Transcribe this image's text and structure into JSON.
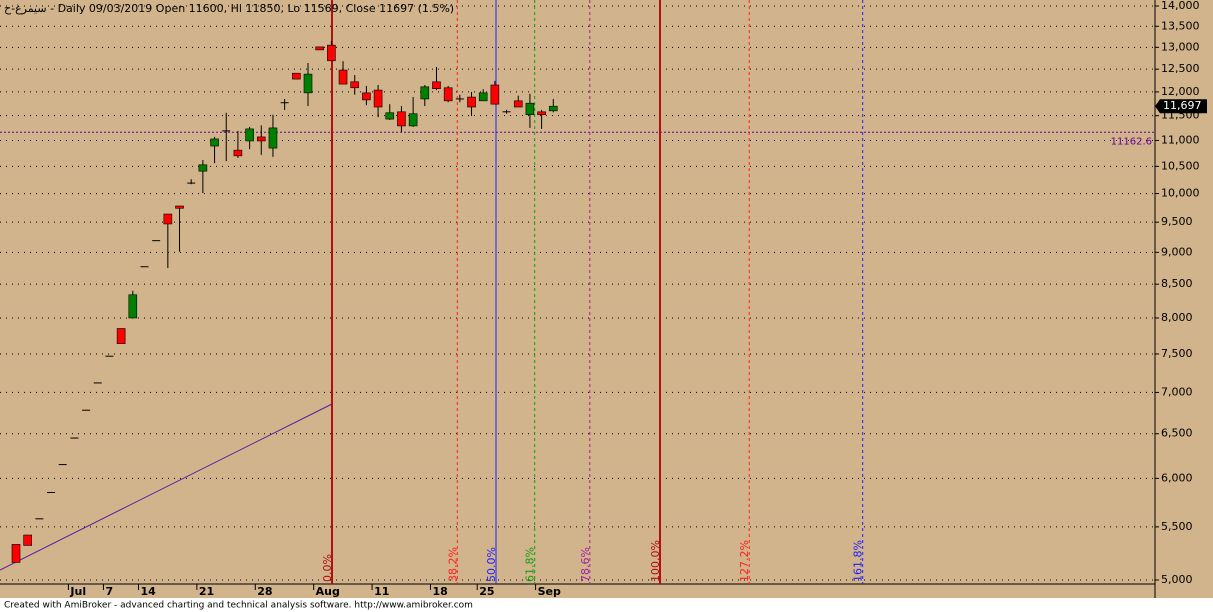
{
  "chart_data": {
    "type": "candlestick",
    "title": "سیمرغ-ح - Daily 09/03/2019 Open 11600, Hi 11850, Lo 11569, Close 11697 (1.5%)",
    "footer": "Created with AmiBroker - advanced charting and technical analysis software. http://www.amibroker.com",
    "categories": [
      null,
      null,
      null,
      null,
      null,
      "Jul",
      null,
      null,
      "7",
      null,
      null,
      "14",
      null,
      null,
      null,
      null,
      "21",
      null,
      null,
      null,
      null,
      "28",
      null,
      null,
      null,
      null,
      "Aug",
      null,
      null,
      null,
      null,
      "11",
      null,
      null,
      null,
      null,
      "18",
      null,
      null,
      null,
      "25",
      null,
      null,
      null,
      null,
      "Sep",
      null
    ],
    "open": [
      5330,
      5420,
      5580,
      5850,
      6150,
      6450,
      6780,
      7120,
      7470,
      7850,
      8000,
      8770,
      9190,
      9640,
      9780,
      10190,
      10410,
      10890,
      11190,
      10810,
      10990,
      11070,
      10850,
      11770,
      12410,
      11980,
      13010,
      13050,
      12480,
      12220,
      11980,
      12040,
      11430,
      11580,
      11290,
      11850,
      12220,
      12090,
      11850,
      11890,
      11810,
      12150,
      11580,
      11810,
      11520,
      11580,
      11600
    ],
    "high": [
      5330,
      5420,
      5580,
      5850,
      6150,
      6450,
      6780,
      7120,
      7470,
      7850,
      8400,
      8770,
      9190,
      9640,
      9780,
      10260,
      10620,
      11070,
      11560,
      11190,
      11270,
      11300,
      11520,
      11850,
      12410,
      12640,
      13010,
      13150,
      12680,
      12370,
      12130,
      12150,
      11740,
      11700,
      11890,
      12150,
      12550,
      12130,
      11940,
      12000,
      12060,
      12240,
      11620,
      11920,
      11960,
      11620,
      11850
    ],
    "low": [
      5160,
      5320,
      5580,
      5850,
      6150,
      6450,
      6780,
      7120,
      7470,
      7640,
      8000,
      8770,
      9190,
      8750,
      9010,
      10170,
      10010,
      10560,
      10600,
      10660,
      10830,
      10720,
      10680,
      11620,
      12280,
      11700,
      12940,
      12680,
      12170,
      11940,
      11720,
      11470,
      11410,
      11170,
      11270,
      11700,
      12040,
      11780,
      11780,
      11490,
      11810,
      11740,
      11540,
      11680,
      11250,
      11230,
      11569
    ],
    "close": [
      5160,
      5320,
      5580,
      5850,
      6150,
      6450,
      6780,
      7120,
      7470,
      7640,
      8340,
      8770,
      9190,
      9470,
      9740,
      10190,
      10530,
      11030,
      11190,
      10700,
      11230,
      10990,
      11250,
      11770,
      12280,
      12390,
      12940,
      12690,
      12170,
      12090,
      11830,
      11680,
      11560,
      11290,
      11540,
      12110,
      12070,
      11810,
      11850,
      11680,
      11980,
      11740,
      11580,
      11680,
      11760,
      11520,
      11697
    ],
    "up_color": "#008000",
    "down_color": "#ff0000",
    "ylim": [
      5000,
      14000
    ],
    "log_scale": true,
    "grid": true,
    "yticks": [
      {
        "value": 5000,
        "label": "5,000"
      },
      {
        "value": 5500,
        "label": "5,500"
      },
      {
        "value": 6000,
        "label": "6,000"
      },
      {
        "value": 6500,
        "label": "6,500"
      },
      {
        "value": 7000,
        "label": "7,000"
      },
      {
        "value": 7500,
        "label": "7,500"
      },
      {
        "value": 8000,
        "label": "8,000"
      },
      {
        "value": 8500,
        "label": "8,500"
      },
      {
        "value": 9000,
        "label": "9,000"
      },
      {
        "value": 9500,
        "label": "9,500"
      },
      {
        "value": 10000,
        "label": "10,000"
      },
      {
        "value": 10500,
        "label": "10,500"
      },
      {
        "value": 11000,
        "label": "11,000"
      },
      {
        "value": 11500,
        "label": "11,500"
      },
      {
        "value": 12000,
        "label": "12,000"
      },
      {
        "value": 12500,
        "label": "12,500"
      },
      {
        "value": 13000,
        "label": "13,000"
      },
      {
        "value": 13500,
        "label": "13,500"
      },
      {
        "value": 14000,
        "label": "14,000"
      }
    ],
    "reference_line": {
      "value": 11162.6,
      "color": "#660099"
    },
    "last_price": {
      "value": 11697,
      "label": "11,697"
    },
    "fib_levels": [
      {
        "value": 0,
        "label": "0.0%",
        "color": "#b01010",
        "dashed": false
      },
      {
        "value": 38.2,
        "label": "38.2%",
        "color": "#ff2020",
        "dashed": true
      },
      {
        "value": 50,
        "label": "50.0%",
        "color": "#2020ff",
        "dashed": false
      },
      {
        "value": 61.8,
        "label": "61.8%",
        "color": "#10a010",
        "dashed": true
      },
      {
        "value": 78.6,
        "label": "78.6%",
        "color": "#a020a0",
        "dashed": true
      },
      {
        "value": 100,
        "label": "100.0%",
        "color": "#b01010",
        "dashed": false
      },
      {
        "value": 127.2,
        "label": "127.2%",
        "color": "#ff2020",
        "dashed": true
      },
      {
        "value": 161.8,
        "label": "161.8%",
        "color": "#2020ff",
        "dashed": true
      }
    ]
  }
}
